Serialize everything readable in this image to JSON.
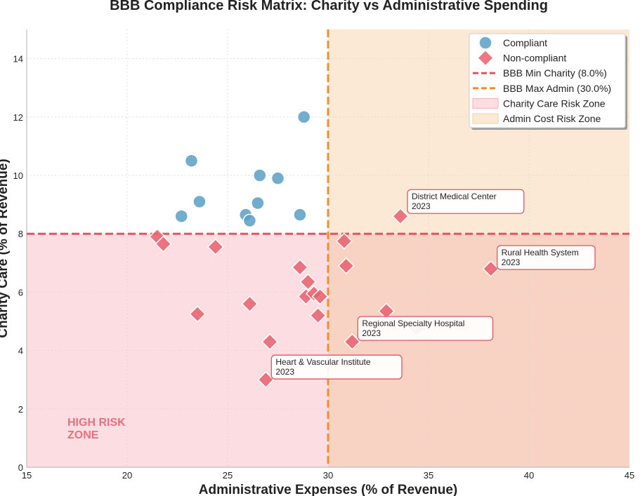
{
  "chart_data": {
    "type": "scatter",
    "title": "BBB Compliance Risk Matrix: Charity vs Administrative Spending",
    "xlabel": "Administrative Expenses (% of Revenue)",
    "ylabel": "Charity Care (% of Revenue)",
    "xlim": [
      15,
      45
    ],
    "ylim": [
      0,
      15
    ],
    "xticks": [
      "15",
      "20",
      "25",
      "30",
      "35",
      "40",
      "45"
    ],
    "yticks": [
      "0",
      "2",
      "4",
      "6",
      "8",
      "10",
      "12",
      "14"
    ],
    "grid": true,
    "legend_position": "top-right",
    "thresholds": {
      "min_charity": 8.0,
      "max_admin": 30.0
    },
    "series": [
      {
        "name": "Compliant",
        "marker": "circle",
        "color": "#5b9fc4",
        "points": [
          {
            "x": 23.2,
            "y": 10.5
          },
          {
            "x": 23.6,
            "y": 9.1
          },
          {
            "x": 22.7,
            "y": 8.6
          },
          {
            "x": 25.9,
            "y": 8.65
          },
          {
            "x": 26.1,
            "y": 8.45
          },
          {
            "x": 26.5,
            "y": 9.05
          },
          {
            "x": 26.6,
            "y": 10.0
          },
          {
            "x": 27.5,
            "y": 9.9
          },
          {
            "x": 28.6,
            "y": 8.65
          },
          {
            "x": 28.8,
            "y": 12.0
          }
        ]
      },
      {
        "name": "Non-compliant",
        "marker": "diamond",
        "color": "#e8606e",
        "points": [
          {
            "x": 21.5,
            "y": 7.9
          },
          {
            "x": 21.8,
            "y": 7.65
          },
          {
            "x": 24.4,
            "y": 7.55
          },
          {
            "x": 23.5,
            "y": 5.25
          },
          {
            "x": 26.1,
            "y": 5.6
          },
          {
            "x": 27.1,
            "y": 4.3
          },
          {
            "x": 26.9,
            "y": 3.0
          },
          {
            "x": 28.6,
            "y": 6.85
          },
          {
            "x": 29.0,
            "y": 6.35
          },
          {
            "x": 28.9,
            "y": 5.85
          },
          {
            "x": 29.3,
            "y": 5.95
          },
          {
            "x": 29.6,
            "y": 5.85
          },
          {
            "x": 29.5,
            "y": 5.2
          },
          {
            "x": 30.8,
            "y": 7.75
          },
          {
            "x": 30.9,
            "y": 6.9
          },
          {
            "x": 31.2,
            "y": 4.3
          },
          {
            "x": 32.9,
            "y": 5.35
          },
          {
            "x": 34.4,
            "y": 4.75
          },
          {
            "x": 33.6,
            "y": 8.6
          },
          {
            "x": 38.1,
            "y": 6.8
          }
        ]
      }
    ],
    "reference_lines": [
      {
        "name": "BBB Min Charity (8.0%)",
        "orientation": "horizontal",
        "value": 8.0,
        "color": "#e05561"
      },
      {
        "name": "BBB Max Admin (30.0%)",
        "orientation": "vertical",
        "value": 30.0,
        "color": "#f0902c"
      }
    ],
    "zones": [
      {
        "name": "Charity Care Risk Zone",
        "x": [
          15,
          45
        ],
        "y": [
          0,
          8.0
        ],
        "color": "#f9c9d0"
      },
      {
        "name": "Admin Cost Risk Zone",
        "x": [
          30,
          45
        ],
        "y": [
          0,
          15
        ],
        "color": "#fad9b8"
      }
    ],
    "annotations": [
      {
        "line1": "District Medical Center",
        "line2": "2023",
        "x": 33.6,
        "y": 8.6
      },
      {
        "line1": "Rural Health System",
        "line2": "2023",
        "x": 38.1,
        "y": 6.8
      },
      {
        "line1": "Regional Specialty Hospital",
        "line2": "2023",
        "x": 31.2,
        "y": 4.3
      },
      {
        "line1": "Heart & Vascular Institute",
        "line2": "2023",
        "x": 26.9,
        "y": 3.0
      }
    ],
    "zone_label": {
      "line1": "HIGH RISK",
      "line2": "ZONE"
    }
  },
  "colors": {
    "compliant": "#5b9fc4",
    "noncompliant": "#e8606e",
    "charity_line": "#e05561",
    "admin_line": "#f0902c",
    "charity_zone": "#fbdde2",
    "admin_zone": "#fbe8d5",
    "overlap_zone": "#f8d2c2",
    "annotation_border": "#e05561"
  }
}
